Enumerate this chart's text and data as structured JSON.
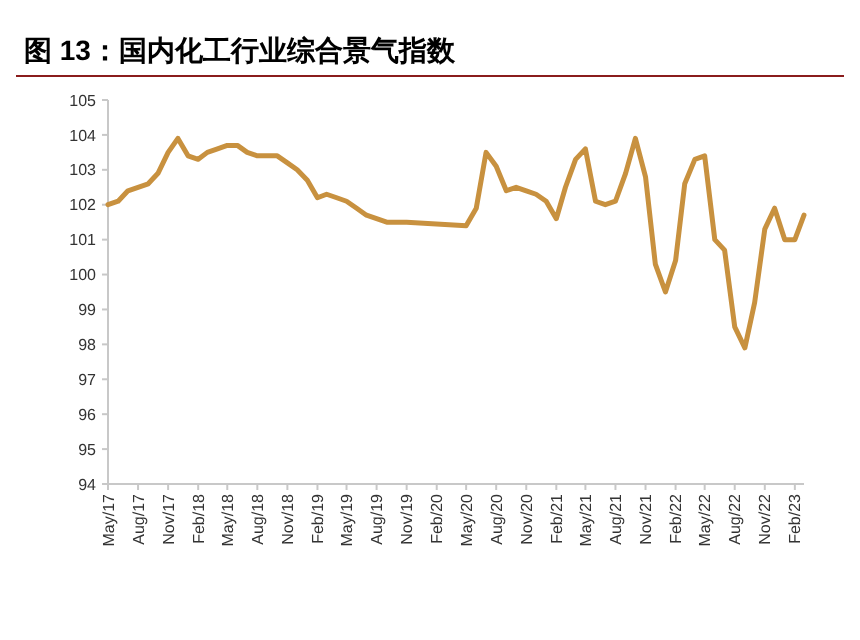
{
  "chart_data": {
    "type": "line",
    "title": "图 13：国内化工行业综合景气指数",
    "x": [
      "2017-05",
      "2017-06",
      "2017-07",
      "2017-08",
      "2017-09",
      "2017-10",
      "2017-11",
      "2017-12",
      "2018-01",
      "2018-02",
      "2018-03",
      "2018-04",
      "2018-05",
      "2018-06",
      "2018-07",
      "2018-08",
      "2018-09",
      "2018-10",
      "2018-11",
      "2018-12",
      "2019-01",
      "2019-02",
      "2019-03",
      "2019-04",
      "2019-05",
      "2019-06",
      "2019-07",
      "2019-08",
      "2019-09",
      "2019-10",
      "2019-11",
      "2020-05",
      "2020-06",
      "2020-07",
      "2020-08",
      "2020-09",
      "2020-10",
      "2020-11",
      "2020-12",
      "2021-01",
      "2021-02",
      "2021-03",
      "2021-04",
      "2021-05",
      "2021-06",
      "2021-07",
      "2021-08",
      "2021-09",
      "2021-10",
      "2021-11",
      "2021-12",
      "2022-01",
      "2022-02",
      "2022-03",
      "2022-04",
      "2022-05",
      "2022-06",
      "2022-07",
      "2022-08",
      "2022-09",
      "2022-10",
      "2022-11",
      "2022-12",
      "2023-01",
      "2023-02",
      "2023-03"
    ],
    "series": [
      {
        "color": "#c8913f",
        "values": [
          102.0,
          102.1,
          102.4,
          102.5,
          102.6,
          102.9,
          103.5,
          103.9,
          103.4,
          103.3,
          103.5,
          103.6,
          103.7,
          103.7,
          103.5,
          103.4,
          103.4,
          103.4,
          103.2,
          103.0,
          102.7,
          102.2,
          102.3,
          102.2,
          102.1,
          101.9,
          101.7,
          101.6,
          101.5,
          101.5,
          101.5,
          101.4,
          101.9,
          103.5,
          103.1,
          102.4,
          102.5,
          102.4,
          102.3,
          102.1,
          101.6,
          102.5,
          103.3,
          103.6,
          102.1,
          102.0,
          102.1,
          102.9,
          103.9,
          102.8,
          100.3,
          99.5,
          100.4,
          102.6,
          103.3,
          103.4,
          101.0,
          100.7,
          98.5,
          97.9,
          99.2,
          101.3,
          101.9,
          101.0,
          101.0,
          101.7
        ]
      }
    ],
    "xlim": [
      "2017-05",
      "2023-03"
    ],
    "xticks": [
      {
        "value": "2017-05",
        "label": "May/17"
      },
      {
        "value": "2017-08",
        "label": "Aug/17"
      },
      {
        "value": "2017-11",
        "label": "Nov/17"
      },
      {
        "value": "2018-02",
        "label": "Feb/18"
      },
      {
        "value": "2018-05",
        "label": "May/18"
      },
      {
        "value": "2018-08",
        "label": "Aug/18"
      },
      {
        "value": "2018-11",
        "label": "Nov/18"
      },
      {
        "value": "2019-02",
        "label": "Feb/19"
      },
      {
        "value": "2019-05",
        "label": "May/19"
      },
      {
        "value": "2019-08",
        "label": "Aug/19"
      },
      {
        "value": "2019-11",
        "label": "Nov/19"
      },
      {
        "value": "2020-02",
        "label": "Feb/20"
      },
      {
        "value": "2020-05",
        "label": "May/20"
      },
      {
        "value": "2020-08",
        "label": "Aug/20"
      },
      {
        "value": "2020-11",
        "label": "Nov/20"
      },
      {
        "value": "2021-02",
        "label": "Feb/21"
      },
      {
        "value": "2021-05",
        "label": "May/21"
      },
      {
        "value": "2021-08",
        "label": "Aug/21"
      },
      {
        "value": "2021-11",
        "label": "Nov/21"
      },
      {
        "value": "2022-02",
        "label": "Feb/22"
      },
      {
        "value": "2022-05",
        "label": "May/22"
      },
      {
        "value": "2022-08",
        "label": "Aug/22"
      },
      {
        "value": "2022-11",
        "label": "Nov/22"
      },
      {
        "value": "2023-02",
        "label": "Feb/23"
      }
    ],
    "ylim": [
      94,
      105
    ],
    "yticks": [
      94,
      95,
      96,
      97,
      98,
      99,
      100,
      101,
      102,
      103,
      104,
      105
    ],
    "grid": false,
    "marker": "none",
    "line_style": "solid"
  }
}
